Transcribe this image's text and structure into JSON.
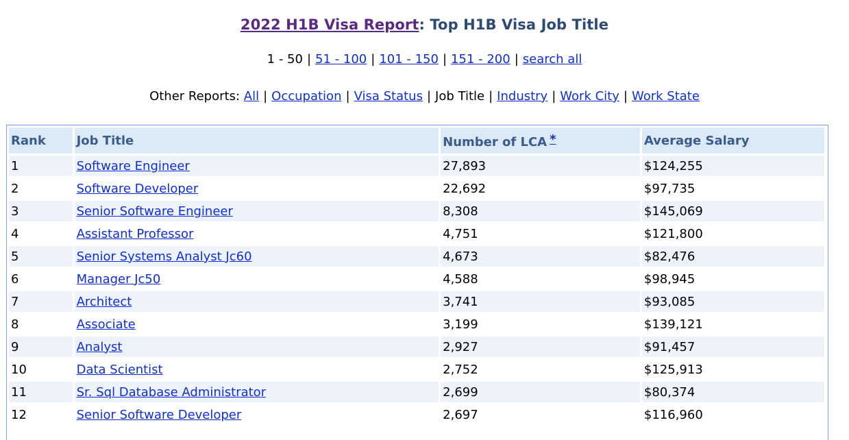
{
  "header": {
    "title_link": "2022 H1B Visa Report",
    "title_rest": ": Top H1B Visa Job Title"
  },
  "pager": {
    "current": "1 - 50",
    "links": [
      "51 - 100",
      "101 - 150",
      "151 - 200",
      "search all"
    ]
  },
  "other_reports": {
    "label": "Other Reports:",
    "items": [
      {
        "label": "All",
        "link": true
      },
      {
        "label": "Occupation",
        "link": true
      },
      {
        "label": "Visa Status",
        "link": true
      },
      {
        "label": "Job Title",
        "link": false
      },
      {
        "label": "Industry",
        "link": true
      },
      {
        "label": "Work City",
        "link": true
      },
      {
        "label": "Work State",
        "link": true
      }
    ]
  },
  "table": {
    "headers": {
      "rank": "Rank",
      "job_title": "Job Title",
      "lca": "Number of LCA",
      "lca_note": "*",
      "salary": "Average Salary"
    },
    "rows": [
      {
        "rank": "1",
        "title": "Software Engineer",
        "lca": "27,893",
        "salary": "$124,255"
      },
      {
        "rank": "2",
        "title": "Software Developer",
        "lca": "22,692",
        "salary": "$97,735"
      },
      {
        "rank": "3",
        "title": "Senior Software Engineer",
        "lca": "8,308",
        "salary": "$145,069"
      },
      {
        "rank": "4",
        "title": "Assistant Professor",
        "lca": "4,751",
        "salary": "$121,800"
      },
      {
        "rank": "5",
        "title": "Senior Systems Analyst Jc60",
        "lca": "4,673",
        "salary": "$82,476"
      },
      {
        "rank": "6",
        "title": "Manager Jc50",
        "lca": "4,588",
        "salary": "$98,945"
      },
      {
        "rank": "7",
        "title": "Architect",
        "lca": "3,741",
        "salary": "$93,085"
      },
      {
        "rank": "8",
        "title": "Associate",
        "lca": "3,199",
        "salary": "$139,121"
      },
      {
        "rank": "9",
        "title": "Analyst",
        "lca": "2,927",
        "salary": "$91,457"
      },
      {
        "rank": "10",
        "title": "Data Scientist",
        "lca": "2,752",
        "salary": "$125,913"
      },
      {
        "rank": "11",
        "title": "Sr. Sql Database Administrator",
        "lca": "2,699",
        "salary": "$80,374"
      },
      {
        "rank": "12",
        "title": "Senior Software Developer",
        "lca": "2,697",
        "salary": "$116,960"
      }
    ]
  },
  "colors": {
    "title": "#2c4a73",
    "title_link": "#5a2a82",
    "link": "#0f2fd1",
    "header_bg": "#dce9f7",
    "row_alt_bg": "#eef2fa",
    "border": "#7aa0e6"
  }
}
